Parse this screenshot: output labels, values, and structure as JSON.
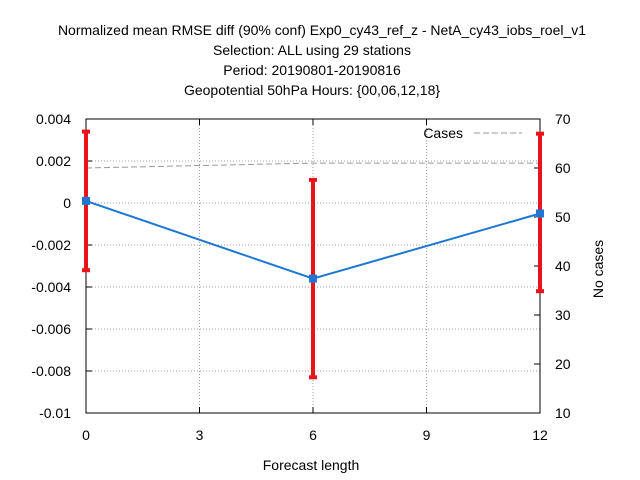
{
  "chart_data": {
    "type": "line",
    "title_lines": [
      "Normalized mean RMSE diff (90% conf) Exp0_cy43_ref_z - NetA_cy43_iobs_roel_v1",
      "Selection: ALL using    29 stations",
      "Period: 20190801-20190816",
      "Geopotential 50hPa   Hours: {00,06,12,18}"
    ],
    "xlabel": "Forecast length",
    "ylabel": "",
    "y2label": "No cases",
    "xlim": [
      0,
      12
    ],
    "ylim": [
      -0.01,
      0.004
    ],
    "y2lim": [
      10,
      70
    ],
    "xticks": [
      "0",
      "3",
      "6",
      "9",
      "12"
    ],
    "yticks": [
      "0.004",
      "0.002",
      "0",
      "-0.002",
      "-0.004",
      "-0.006",
      "-0.008",
      "-0.01"
    ],
    "y2ticks": [
      "70",
      "60",
      "50",
      "40",
      "30",
      "20",
      "10"
    ],
    "grid": true,
    "legend_position": "top-right",
    "series": [
      {
        "name": "",
        "color": "#1f77d4",
        "x": [
          0,
          6,
          12
        ],
        "y": [
          0.0001,
          -0.0036,
          -0.0005
        ],
        "error_low": [
          -0.0032,
          -0.0083,
          -0.0042
        ],
        "error_high": [
          0.0034,
          0.0011,
          0.0033
        ],
        "error_color": "#e8141c"
      },
      {
        "name": "Cases",
        "axis": "y2",
        "color": "#999999",
        "dashed": true,
        "x": [
          0,
          6,
          12
        ],
        "y": [
          60,
          61,
          61
        ]
      }
    ]
  }
}
